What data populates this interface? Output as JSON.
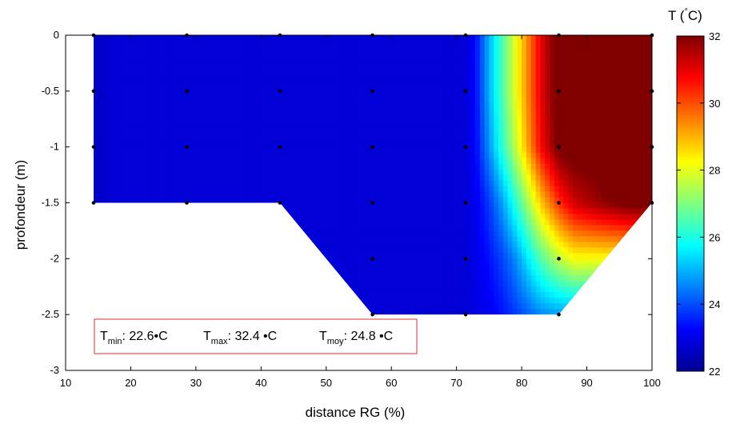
{
  "chart_data": {
    "type": "heatmap",
    "title": "",
    "xlabel": "distance RG (%)",
    "ylabel": "profondeur (m)",
    "xlim": [
      10,
      100
    ],
    "ylim": [
      -3,
      0
    ],
    "x_ticks": [
      "10",
      "20",
      "30",
      "40",
      "50",
      "60",
      "70",
      "80",
      "90",
      "100"
    ],
    "y_ticks": [
      "0",
      "-0.5",
      "-1",
      "-1.5",
      "-2",
      "-2.5",
      "-3"
    ],
    "colorbar": {
      "label_prefix": "T (",
      "label_degree": "°",
      "label_unit": "C)",
      "range": [
        22,
        32
      ],
      "ticks": [
        "22",
        "24",
        "26",
        "28",
        "30",
        "32"
      ],
      "colormap": "jet"
    },
    "measurement_points": [
      {
        "x": 14.3,
        "y": 0
      },
      {
        "x": 14.3,
        "y": -0.5
      },
      {
        "x": 14.3,
        "y": -1
      },
      {
        "x": 14.3,
        "y": -1.5
      },
      {
        "x": 28.6,
        "y": 0
      },
      {
        "x": 28.6,
        "y": -0.5
      },
      {
        "x": 28.6,
        "y": -1
      },
      {
        "x": 28.6,
        "y": -1.5
      },
      {
        "x": 42.9,
        "y": 0
      },
      {
        "x": 42.9,
        "y": -0.5
      },
      {
        "x": 42.9,
        "y": -1
      },
      {
        "x": 42.9,
        "y": -1.5
      },
      {
        "x": 57.1,
        "y": 0
      },
      {
        "x": 57.1,
        "y": -0.5
      },
      {
        "x": 57.1,
        "y": -1
      },
      {
        "x": 57.1,
        "y": -1.5
      },
      {
        "x": 57.1,
        "y": -2
      },
      {
        "x": 57.1,
        "y": -2.5
      },
      {
        "x": 71.4,
        "y": 0
      },
      {
        "x": 71.4,
        "y": -0.5
      },
      {
        "x": 71.4,
        "y": -1
      },
      {
        "x": 71.4,
        "y": -1.5
      },
      {
        "x": 71.4,
        "y": -2
      },
      {
        "x": 71.4,
        "y": -2.5
      },
      {
        "x": 85.7,
        "y": 0
      },
      {
        "x": 85.7,
        "y": -0.5
      },
      {
        "x": 85.7,
        "y": -1
      },
      {
        "x": 85.7,
        "y": -1.5
      },
      {
        "x": 85.7,
        "y": -2
      },
      {
        "x": 85.7,
        "y": -2.5
      },
      {
        "x": 100,
        "y": 0
      },
      {
        "x": 100,
        "y": -0.5
      },
      {
        "x": 100,
        "y": -1
      },
      {
        "x": 100,
        "y": -1.5
      }
    ],
    "domain_outline": [
      {
        "x": 14.3,
        "y": 0
      },
      {
        "x": 100,
        "y": 0
      },
      {
        "x": 100,
        "y": -1.5
      },
      {
        "x": 85.7,
        "y": -2.5
      },
      {
        "x": 57.1,
        "y": -2.5
      },
      {
        "x": 42.9,
        "y": -1.5
      },
      {
        "x": 14.3,
        "y": -1.5
      }
    ],
    "temperature_field": {
      "x": [
        14.3,
        18,
        71.4,
        73,
        75,
        77,
        79,
        81,
        83,
        85.7,
        88,
        92,
        96,
        100
      ],
      "profiles": [
        {
          "y": 0,
          "t": [
            22.6,
            22.8,
            22.8,
            23.4,
            25,
            26.5,
            28,
            29.5,
            31,
            32.4,
            32.4,
            32.4,
            32.4,
            32.4
          ]
        },
        {
          "y": -0.5,
          "t": [
            22.6,
            22.8,
            22.8,
            23.4,
            25,
            26.5,
            28,
            29.5,
            31,
            32.4,
            32.4,
            32.4,
            32.4,
            32.4
          ]
        },
        {
          "y": -1,
          "t": [
            22.6,
            22.8,
            22.8,
            23.3,
            24.7,
            26.2,
            27.6,
            29.2,
            30.8,
            32.2,
            32.4,
            32.4,
            32.4,
            32.4
          ]
        },
        {
          "y": -1.5,
          "t": [
            22.6,
            22.8,
            22.8,
            23.1,
            23.8,
            24.8,
            26.1,
            27.4,
            28.8,
            30.3,
            31.2,
            31.8,
            32.2,
            32.4
          ]
        },
        {
          "y": -2,
          "t": [
            22.6,
            22.8,
            22.8,
            23.0,
            23.4,
            23.9,
            24.6,
            25.6,
            26.6,
            27.6,
            28.2,
            28.2,
            28.2,
            28.2
          ]
        },
        {
          "y": -2.5,
          "t": [
            22.6,
            22.8,
            22.8,
            22.9,
            23.1,
            23.4,
            23.8,
            24.2,
            24.6,
            24.8,
            24.8,
            24.8,
            24.8,
            24.8
          ]
        }
      ]
    },
    "annotation": {
      "tmin_label": "T",
      "tmin_sub": "min",
      "tmin_value": ": 22.6•C",
      "tmax_label": "T",
      "tmax_sub": "max",
      "tmax_value": ": 32.4 •C",
      "tmoy_label": "T",
      "tmoy_sub": "moy",
      "tmoy_value": ": 24.8 •C",
      "border_color": "#e03030"
    }
  }
}
